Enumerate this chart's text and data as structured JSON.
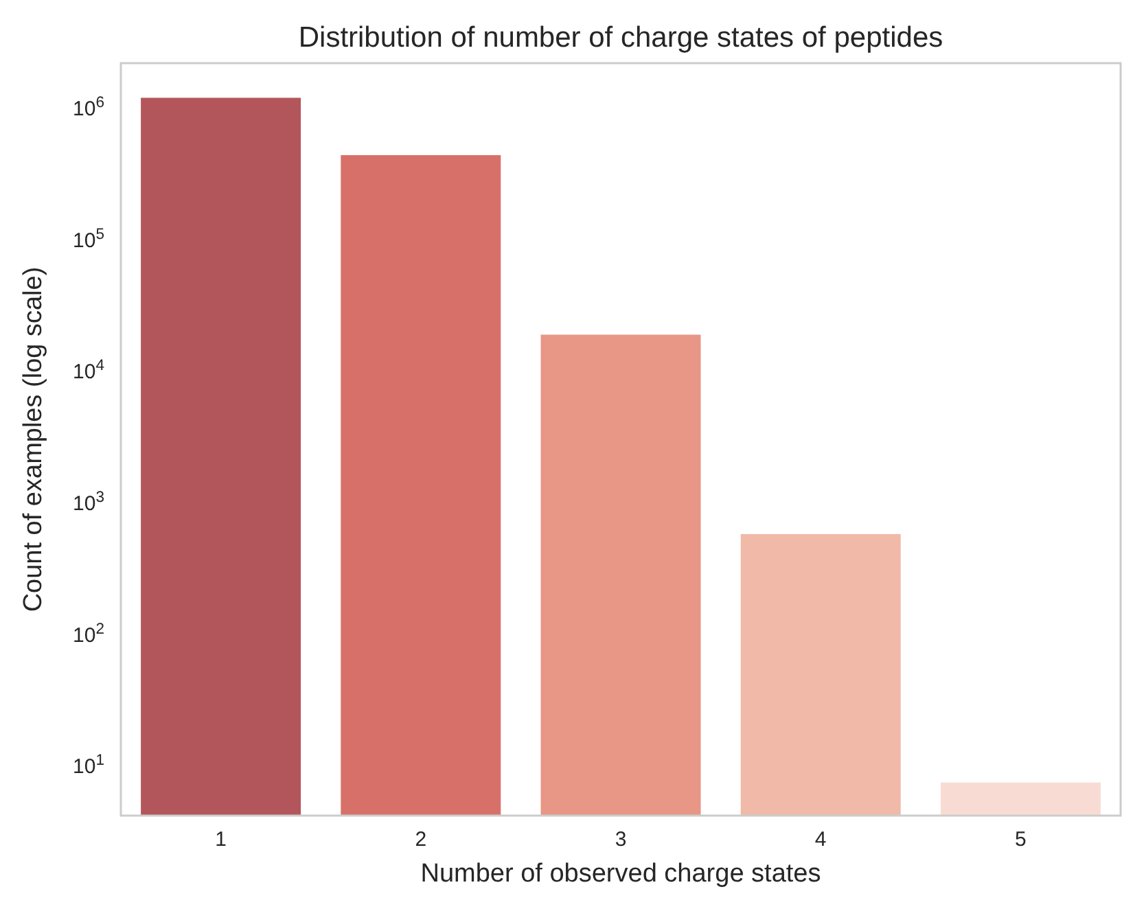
{
  "chart_data": {
    "type": "bar",
    "title": "Distribution of number of charge states of peptides",
    "xlabel": "Number of observed charge states",
    "ylabel": "Count of examples (log scale)",
    "categories": [
      "1",
      "2",
      "3",
      "4",
      "5"
    ],
    "values": [
      1200000,
      440000,
      19000,
      580,
      7.5
    ],
    "colors": [
      "#b3565b",
      "#d8706a",
      "#e89685",
      "#f1b9a8",
      "#f8dcd4"
    ],
    "log": true,
    "ylim": [
      4.2,
      2200000
    ],
    "yticks": [
      {
        "value": 10,
        "label": "10$^{1}$"
      },
      {
        "value": 100,
        "label": "10$^{2}$"
      },
      {
        "value": 1000,
        "label": "10$^{3}$"
      },
      {
        "value": 10000,
        "label": "10$^{4}$"
      },
      {
        "value": 100000,
        "label": "10$^{5}$"
      },
      {
        "value": 1000000,
        "label": "10$^{6}$"
      }
    ],
    "grid": false
  }
}
